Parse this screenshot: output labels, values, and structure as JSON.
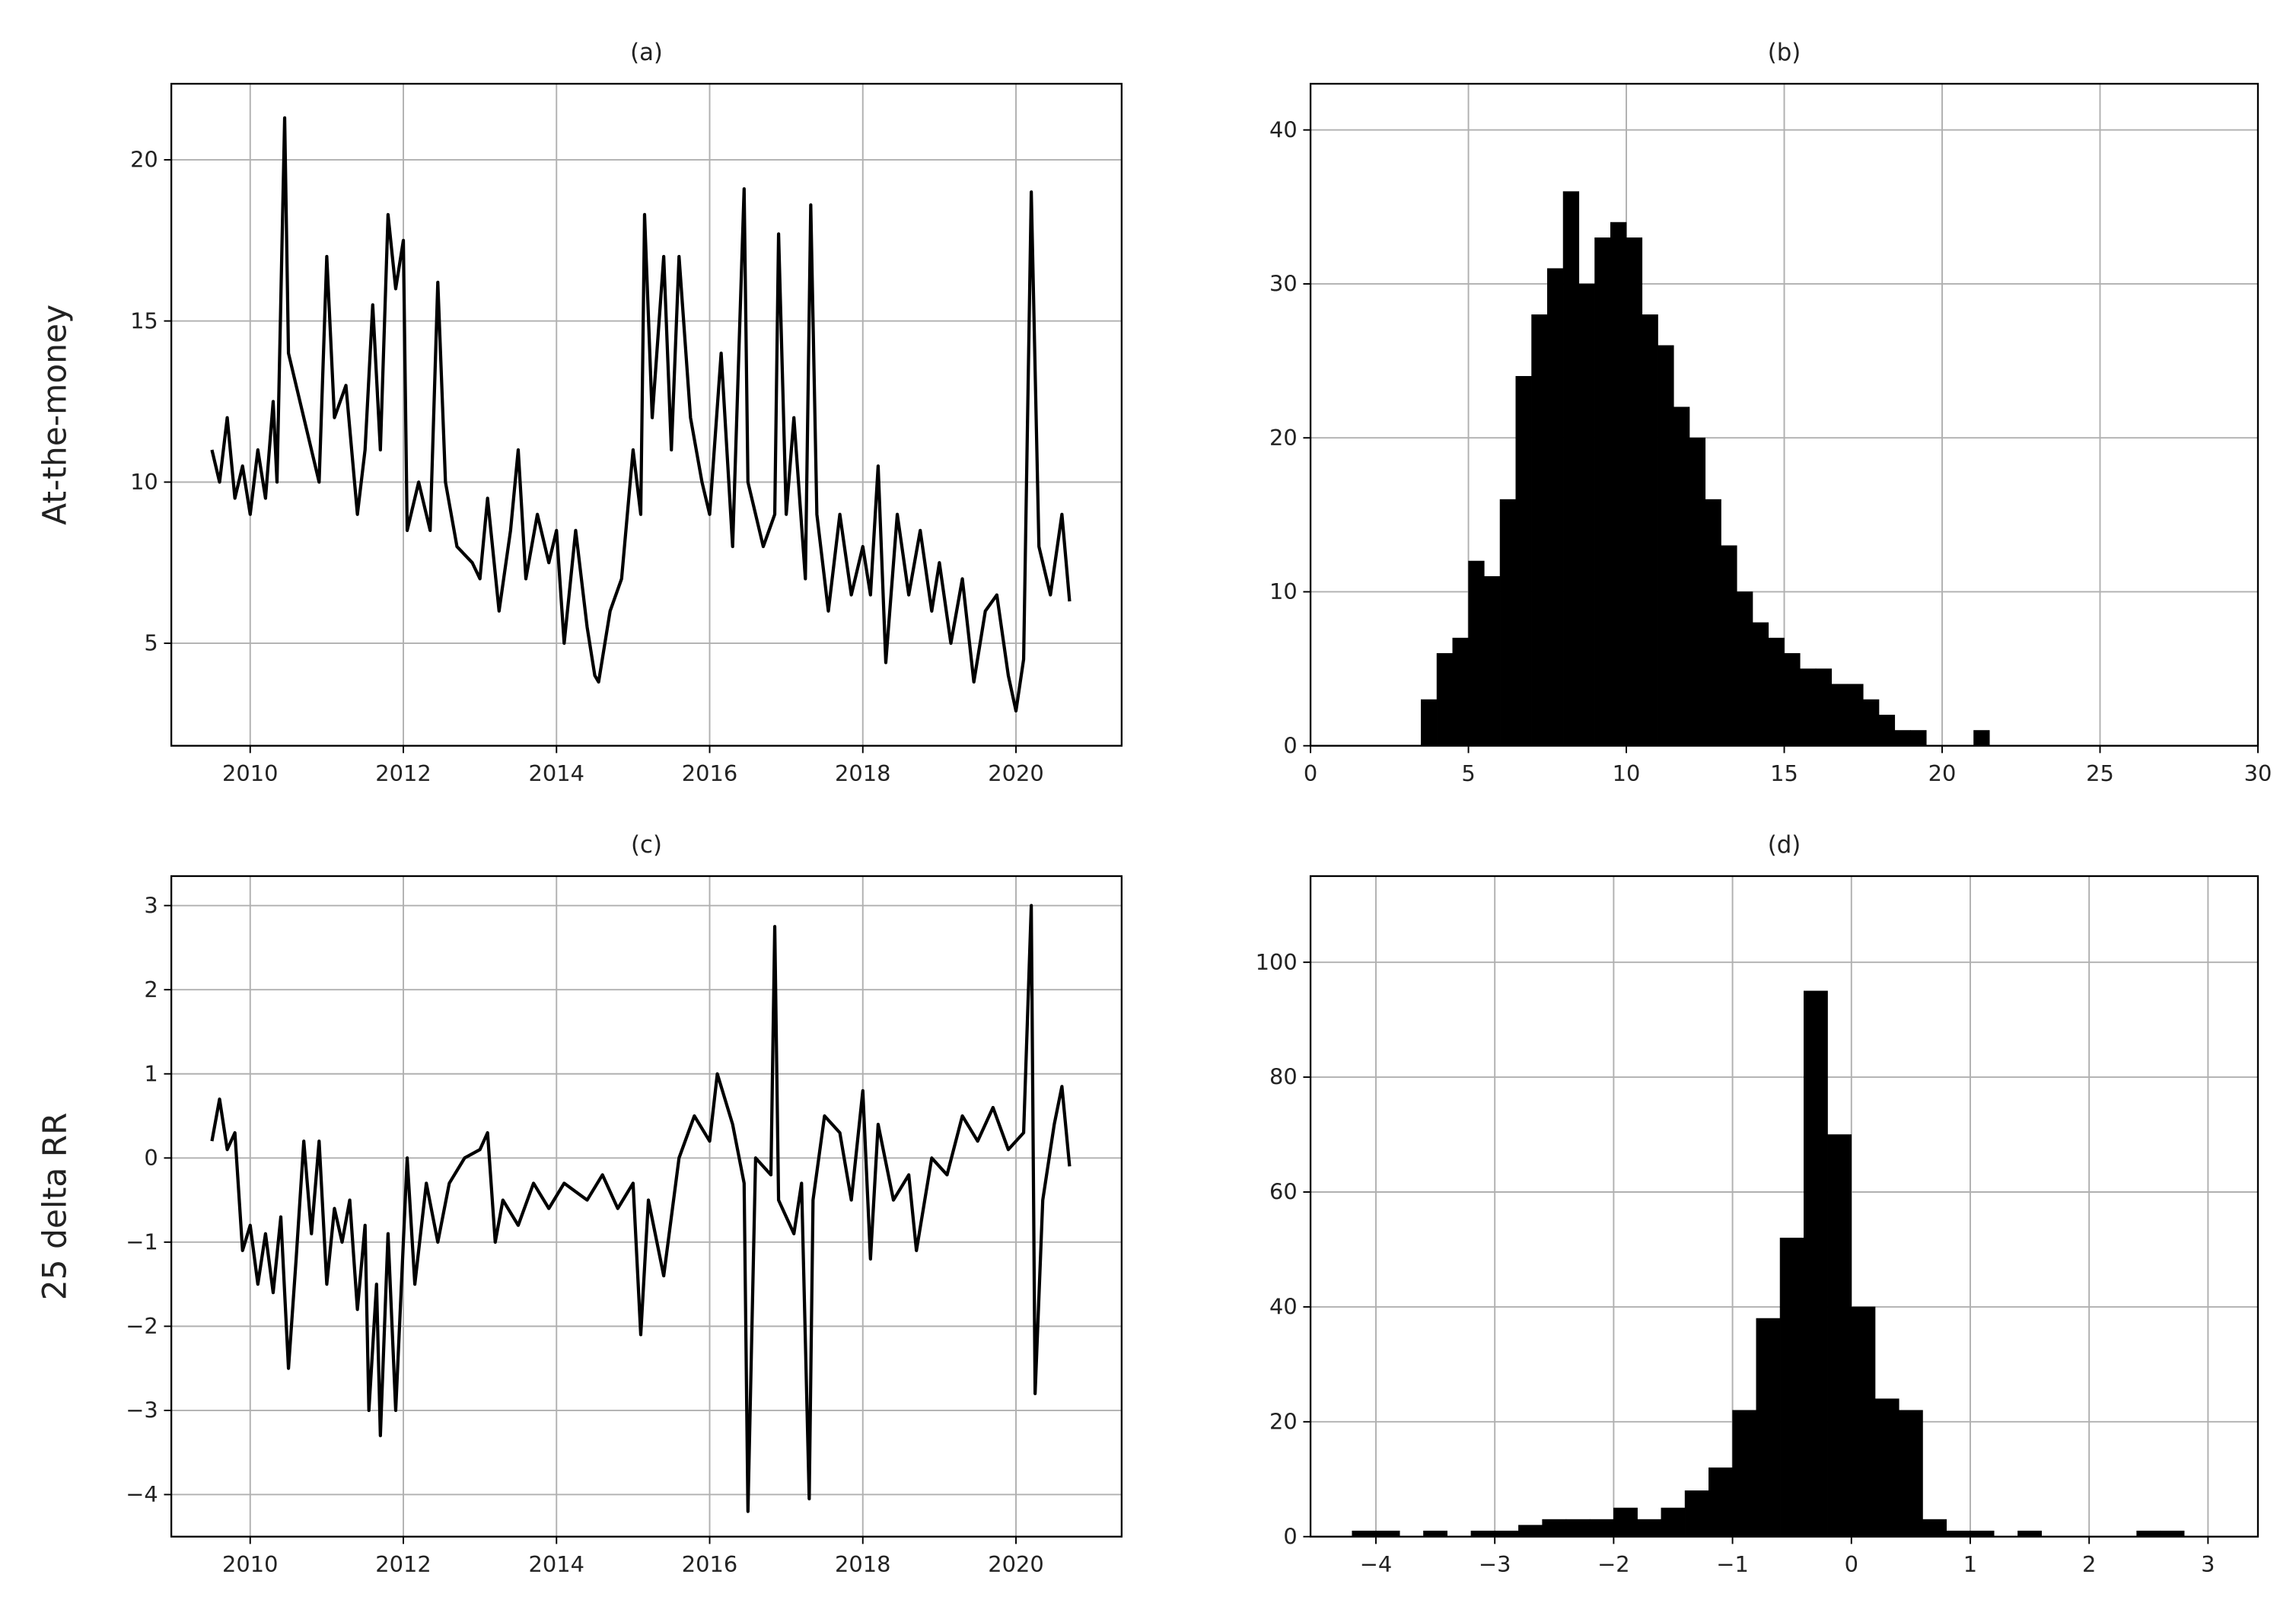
{
  "chart_data": [
    {
      "type": "line",
      "title": "(a)",
      "ylabel": "At-the-money",
      "color": "#000000",
      "grid": true,
      "xlim": [
        2008.97,
        2021.38
      ],
      "ylim": [
        1.82,
        22.36
      ],
      "xticks": [
        2010,
        2012,
        2014,
        2016,
        2018,
        2020
      ],
      "yticks": [
        5,
        10,
        15,
        20
      ],
      "x": [
        2009.5,
        2009.6,
        2009.7,
        2009.8,
        2009.9,
        2010.0,
        2010.1,
        2010.2,
        2010.3,
        2010.35,
        2010.45,
        2010.5,
        2010.6,
        2010.75,
        2010.9,
        2011.0,
        2011.1,
        2011.25,
        2011.4,
        2011.5,
        2011.6,
        2011.7,
        2011.8,
        2011.9,
        2012.0,
        2012.05,
        2012.2,
        2012.35,
        2012.45,
        2012.55,
        2012.7,
        2012.9,
        2013.0,
        2013.1,
        2013.25,
        2013.4,
        2013.5,
        2013.6,
        2013.75,
        2013.9,
        2014.0,
        2014.1,
        2014.25,
        2014.4,
        2014.5,
        2014.55,
        2014.7,
        2014.85,
        2015.0,
        2015.1,
        2015.15,
        2015.25,
        2015.4,
        2015.5,
        2015.6,
        2015.75,
        2015.9,
        2016.0,
        2016.15,
        2016.3,
        2016.45,
        2016.5,
        2016.7,
        2016.85,
        2016.9,
        2017.0,
        2017.1,
        2017.25,
        2017.32,
        2017.4,
        2017.55,
        2017.7,
        2017.85,
        2018.0,
        2018.1,
        2018.2,
        2018.3,
        2018.45,
        2018.6,
        2018.75,
        2018.9,
        2019.0,
        2019.15,
        2019.3,
        2019.45,
        2019.6,
        2019.75,
        2019.9,
        2020.0,
        2020.1,
        2020.2,
        2020.3,
        2020.45,
        2020.6,
        2020.7
      ],
      "values": [
        11,
        10,
        12,
        9.5,
        10.5,
        9,
        11,
        9.5,
        12.5,
        10,
        21.3,
        14,
        13,
        11.5,
        10,
        17,
        12,
        13,
        9,
        11,
        15.5,
        11,
        18.3,
        16,
        17.5,
        8.5,
        10,
        8.5,
        16.2,
        10,
        8,
        7.5,
        7,
        9.5,
        6,
        8.5,
        11,
        7,
        9,
        7.5,
        8.5,
        5,
        8.5,
        5.5,
        4,
        3.8,
        6,
        7,
        11,
        9,
        18.3,
        12,
        17,
        11,
        17,
        12,
        10,
        9,
        14,
        8,
        19.1,
        10,
        8,
        9,
        17.7,
        9,
        12,
        7,
        18.6,
        9,
        6,
        9,
        6.5,
        8,
        6.5,
        10.5,
        4.4,
        9,
        6.5,
        8.5,
        6,
        7.5,
        5,
        7,
        3.8,
        6,
        6.5,
        4,
        2.9,
        4.5,
        19,
        8,
        6.5,
        9,
        6.3
      ]
    },
    {
      "type": "histogram",
      "title": "(b)",
      "color": "#000000",
      "grid": true,
      "xlim": [
        0,
        30
      ],
      "ylim": [
        0,
        43
      ],
      "xticks": [
        0,
        5,
        10,
        15,
        20,
        25,
        30
      ],
      "yticks": [
        0,
        10,
        20,
        30,
        40
      ],
      "bins": [
        3.5,
        4,
        4.5,
        5,
        5.5,
        6,
        6.5,
        7,
        7.5,
        8,
        8.5,
        9,
        9.5,
        10,
        10.5,
        11,
        11.5,
        12,
        12.5,
        13,
        13.5,
        14,
        14.5,
        15,
        15.5,
        16,
        16.5,
        17,
        17.5,
        18,
        18.5,
        19,
        19.5,
        20,
        20.5,
        21,
        21.5
      ],
      "values": [
        3,
        6,
        7,
        12,
        11,
        16,
        24,
        28,
        31,
        36,
        30,
        33,
        34,
        33,
        28,
        26,
        22,
        20,
        16,
        13,
        10,
        8,
        7,
        6,
        5,
        5,
        4,
        4,
        3,
        2,
        1,
        1,
        0,
        0,
        0,
        1
      ]
    },
    {
      "type": "line",
      "title": "(c)",
      "ylabel": "25 delta RR",
      "color": "#000000",
      "grid": true,
      "xlim": [
        2008.97,
        2021.38
      ],
      "ylim": [
        -4.5,
        3.35
      ],
      "xticks": [
        2010,
        2012,
        2014,
        2016,
        2018,
        2020
      ],
      "yticks": [
        {
          "value": -4,
          "label": "−4"
        },
        {
          "value": -3,
          "label": "−3"
        },
        {
          "value": -2,
          "label": "−2"
        },
        {
          "value": -1,
          "label": "−1"
        },
        0,
        1,
        2,
        3
      ],
      "x": [
        2009.5,
        2009.6,
        2009.7,
        2009.8,
        2009.9,
        2010.0,
        2010.1,
        2010.2,
        2010.3,
        2010.4,
        2010.5,
        2010.6,
        2010.7,
        2010.8,
        2010.9,
        2011.0,
        2011.1,
        2011.2,
        2011.3,
        2011.4,
        2011.5,
        2011.55,
        2011.65,
        2011.7,
        2011.8,
        2011.9,
        2012.0,
        2012.05,
        2012.15,
        2012.3,
        2012.45,
        2012.6,
        2012.8,
        2013.0,
        2013.1,
        2013.2,
        2013.3,
        2013.5,
        2013.7,
        2013.9,
        2014.1,
        2014.4,
        2014.6,
        2014.8,
        2015.0,
        2015.1,
        2015.2,
        2015.4,
        2015.6,
        2015.8,
        2016.0,
        2016.1,
        2016.3,
        2016.45,
        2016.5,
        2016.6,
        2016.8,
        2016.85,
        2016.9,
        2017.1,
        2017.2,
        2017.3,
        2017.35,
        2017.5,
        2017.7,
        2017.85,
        2018.0,
        2018.1,
        2018.2,
        2018.4,
        2018.6,
        2018.7,
        2018.9,
        2019.1,
        2019.3,
        2019.5,
        2019.7,
        2019.9,
        2020.1,
        2020.2,
        2020.25,
        2020.35,
        2020.5,
        2020.6,
        2020.7
      ],
      "values": [
        0.2,
        0.7,
        0.1,
        0.3,
        -1.1,
        -0.8,
        -1.5,
        -0.9,
        -1.6,
        -0.7,
        -2.5,
        -1.2,
        0.2,
        -0.9,
        0.2,
        -1.5,
        -0.6,
        -1.0,
        -0.5,
        -1.8,
        -0.8,
        -3.0,
        -1.5,
        -3.3,
        -0.9,
        -3.0,
        -1.0,
        0,
        -1.5,
        -0.3,
        -1.0,
        -0.3,
        0,
        0.1,
        0.3,
        -1.0,
        -0.5,
        -0.8,
        -0.3,
        -0.6,
        -0.3,
        -0.5,
        -0.2,
        -0.6,
        -0.3,
        -2.1,
        -0.5,
        -1.4,
        0,
        0.5,
        0.2,
        1.0,
        0.4,
        -0.3,
        -4.2,
        0,
        -0.2,
        2.75,
        -0.5,
        -0.9,
        -0.3,
        -4.05,
        -0.5,
        0.5,
        0.3,
        -0.5,
        0.8,
        -1.2,
        0.4,
        -0.5,
        -0.2,
        -1.1,
        0,
        -0.2,
        0.5,
        0.2,
        0.6,
        0.1,
        0.3,
        3.0,
        -2.8,
        -0.5,
        0.4,
        0.85,
        -0.1
      ]
    },
    {
      "type": "histogram",
      "title": "(d)",
      "color": "#000000",
      "grid": true,
      "xlim": [
        -4.55,
        3.42
      ],
      "ylim": [
        0,
        115
      ],
      "xticks": [
        {
          "value": -4,
          "label": "−4"
        },
        {
          "value": -3,
          "label": "−3"
        },
        {
          "value": -2,
          "label": "−2"
        },
        {
          "value": -1,
          "label": "−1"
        },
        0,
        1,
        2,
        3
      ],
      "yticks": [
        0,
        20,
        40,
        60,
        80,
        100
      ],
      "bins": [
        -4.2,
        -4.0,
        -3.8,
        -3.6,
        -3.4,
        -3.2,
        -3.0,
        -2.8,
        -2.6,
        -2.4,
        -2.2,
        -2.0,
        -1.8,
        -1.6,
        -1.4,
        -1.2,
        -1.0,
        -0.8,
        -0.6,
        -0.4,
        -0.2,
        0.0,
        0.2,
        0.4,
        0.6,
        0.8,
        1.0,
        1.2,
        1.4,
        1.6,
        1.8,
        2.0,
        2.2,
        2.4,
        2.6,
        2.8
      ],
      "values": [
        1,
        1,
        0,
        1,
        0,
        1,
        1,
        2,
        3,
        3,
        3,
        5,
        3,
        5,
        8,
        12,
        22,
        38,
        52,
        95,
        70,
        40,
        24,
        22,
        3,
        1,
        1,
        0,
        1,
        0,
        0,
        0,
        0,
        1,
        1
      ]
    }
  ]
}
